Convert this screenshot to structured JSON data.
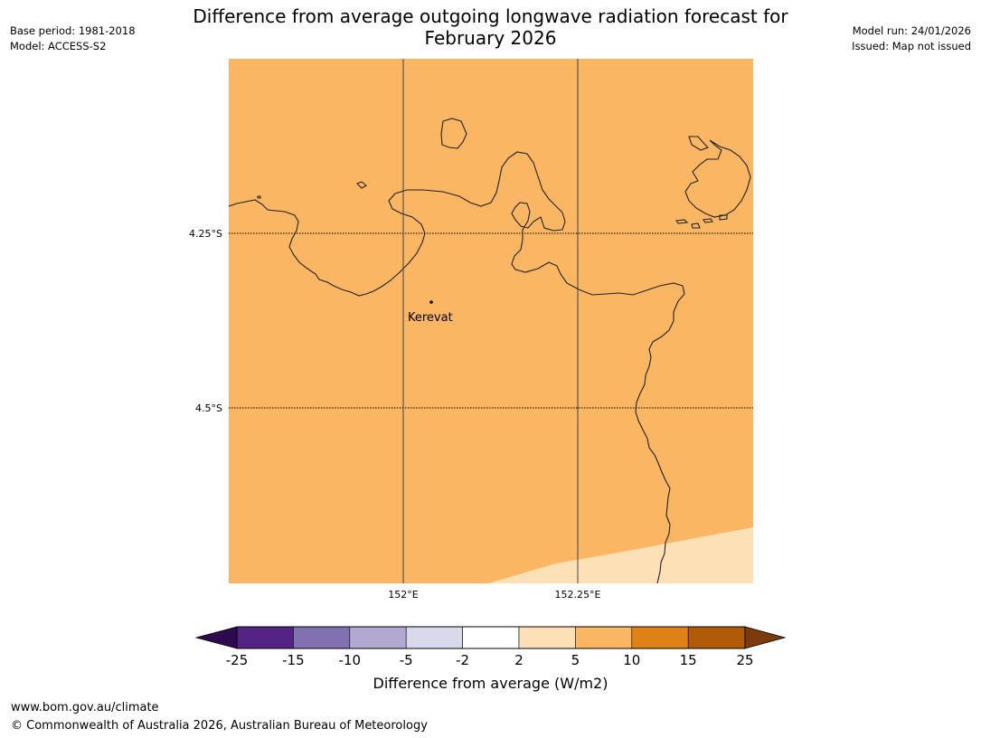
{
  "header": {
    "title_line1": "Difference from average outgoing longwave radiation forecast for",
    "title_line2": "February 2026",
    "base_period": "Base period: 1981-2018",
    "model": "Model: ACCESS-S2",
    "model_run": "Model run: 24/01/2026",
    "issued": "Issued: Map not issued"
  },
  "map": {
    "lat_labels": [
      "4.25°S",
      "4.5°S"
    ],
    "lon_labels": [
      "152°E",
      "152.25°E"
    ],
    "place_label": "Kerevat",
    "fill_main": "#fab663",
    "fill_low": "#fde0b5"
  },
  "colorbar": {
    "tick_labels": [
      "-25",
      "-15",
      "-10",
      "-5",
      "-2",
      "2",
      "5",
      "10",
      "15",
      "25"
    ],
    "colors": [
      "#2d0a4e",
      "#542386",
      "#8271b0",
      "#b1a9d1",
      "#d8d9ea",
      "#ffffff",
      "#fde0b5",
      "#fab663",
      "#df8116",
      "#b15a08",
      "#7d3b0d"
    ],
    "label": "Difference from average (W/m2)"
  },
  "footer": {
    "url": "www.bom.gov.au/climate",
    "copyright": "© Commonwealth of Australia 2026, Australian Bureau of Meteorology"
  }
}
